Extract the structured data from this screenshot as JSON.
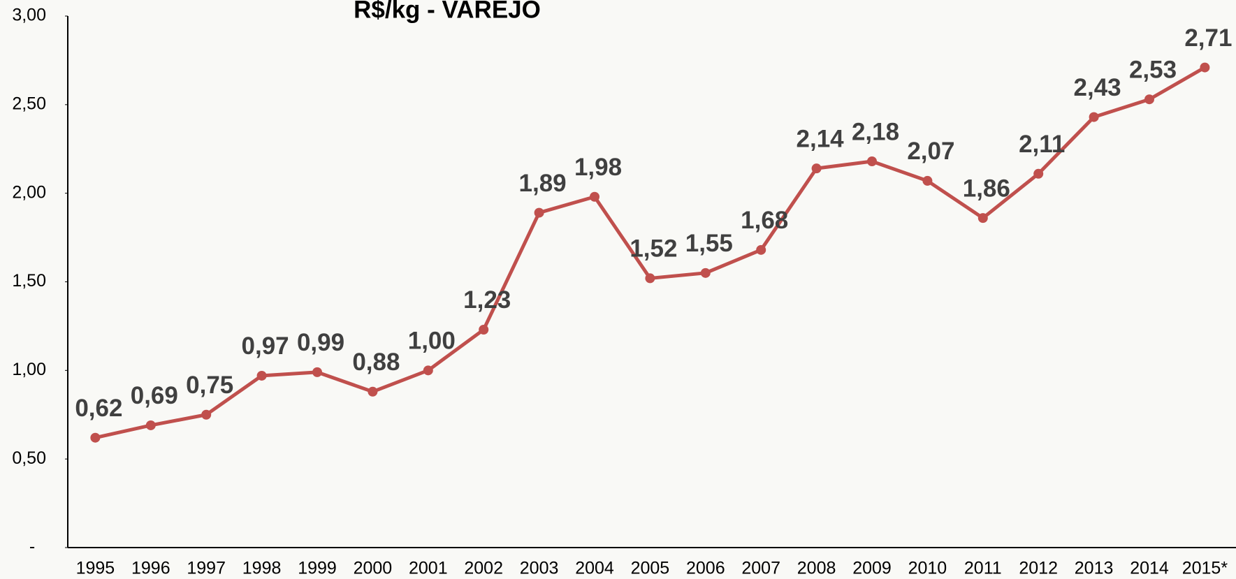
{
  "chart_data": {
    "type": "line",
    "title": "R$/kg - VAREJO",
    "categories": [
      "1995",
      "1996",
      "1997",
      "1998",
      "1999",
      "2000",
      "2001",
      "2002",
      "2003",
      "2004",
      "2005",
      "2006",
      "2007",
      "2008",
      "2009",
      "2010",
      "2011",
      "2012",
      "2013",
      "2014",
      "2015*"
    ],
    "series": [
      {
        "color": "#c0504d",
        "values": [
          0.62,
          0.69,
          0.75,
          0.97,
          0.99,
          0.88,
          1.0,
          1.23,
          1.89,
          1.98,
          1.52,
          1.55,
          1.68,
          2.14,
          2.18,
          2.07,
          1.86,
          2.11,
          2.43,
          2.53,
          2.71
        ],
        "value_labels": [
          "0,62",
          "0,69",
          "0,75",
          "0,97",
          "0,99",
          "0,88",
          "1,00",
          "1,23",
          "1,89",
          "1,98",
          "1,52",
          "1,55",
          "1,68",
          "2,14",
          "2,18",
          "2,07",
          "1,86",
          "2,11",
          "2,43",
          "2,53",
          "2,71"
        ]
      }
    ],
    "ylim": [
      0,
      3
    ],
    "yticks": [
      {
        "value": 0,
        "label": "-"
      },
      {
        "value": 0.5,
        "label": "0,50"
      },
      {
        "value": 1,
        "label": "1,00"
      },
      {
        "value": 1.5,
        "label": "1,50"
      },
      {
        "value": 2,
        "label": "2,00"
      },
      {
        "value": 2.5,
        "label": "2,50"
      },
      {
        "value": 3,
        "label": "3,00"
      }
    ],
    "grid": false
  }
}
